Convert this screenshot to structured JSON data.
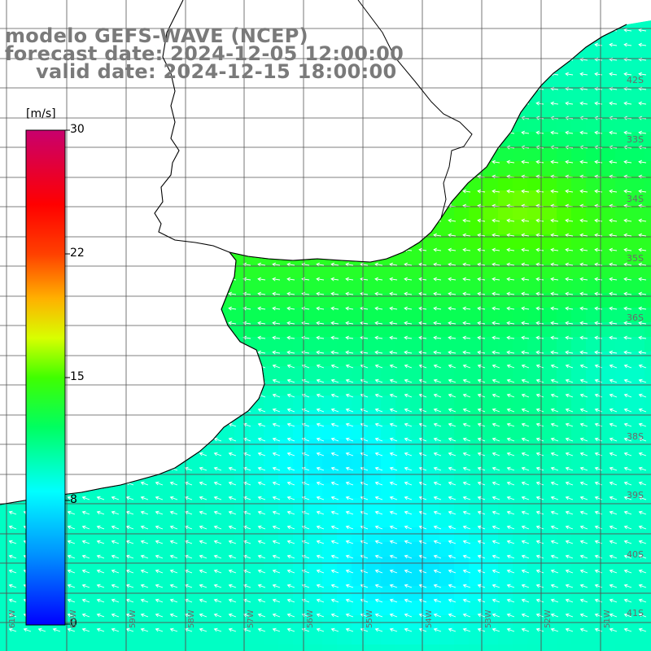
{
  "header": {
    "line1": "modelo GEFS-WAVE (NCEP)",
    "line2": "forecast date: 2024-12-05 12:00:00",
    "line3": "valid date: 2024-12-15 18:00:00"
  },
  "colorbar": {
    "unit": "[m/s]",
    "ticks": [
      "30",
      "22",
      "15",
      "8",
      "0"
    ],
    "min": 0,
    "max": 30,
    "stops": [
      "#0000ff",
      "#00a0ff",
      "#00ffff",
      "#00ff40",
      "#40ff00",
      "#ffff00",
      "#ff8000",
      "#ff0000",
      "#ff0080",
      "#c00080"
    ]
  },
  "lat_labels": [
    "42S",
    "33S",
    "34S",
    "35S",
    "36S",
    "38S",
    "39S",
    "40S",
    "41S"
  ],
  "lon_labels": [
    "61W",
    "60W",
    "59W",
    "58W",
    "57W",
    "56W",
    "55W",
    "54W",
    "53W",
    "52W",
    "51W"
  ],
  "colors": {
    "land": "#ffffff",
    "coast": "#000000",
    "grid": "#555555",
    "arrow": "#ffffff"
  }
}
